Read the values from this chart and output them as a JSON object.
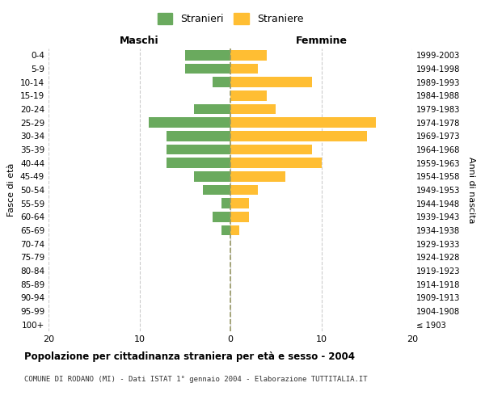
{
  "age_groups": [
    "100+",
    "95-99",
    "90-94",
    "85-89",
    "80-84",
    "75-79",
    "70-74",
    "65-69",
    "60-64",
    "55-59",
    "50-54",
    "45-49",
    "40-44",
    "35-39",
    "30-34",
    "25-29",
    "20-24",
    "15-19",
    "10-14",
    "5-9",
    "0-4"
  ],
  "birth_years": [
    "≤ 1903",
    "1904-1908",
    "1909-1913",
    "1914-1918",
    "1919-1923",
    "1924-1928",
    "1929-1933",
    "1934-1938",
    "1939-1943",
    "1944-1948",
    "1949-1953",
    "1954-1958",
    "1959-1963",
    "1964-1968",
    "1969-1973",
    "1974-1978",
    "1979-1983",
    "1984-1988",
    "1989-1993",
    "1994-1998",
    "1999-2003"
  ],
  "males": [
    0,
    0,
    0,
    0,
    0,
    0,
    0,
    1,
    2,
    1,
    3,
    4,
    7,
    7,
    7,
    9,
    4,
    0,
    2,
    5,
    5
  ],
  "females": [
    0,
    0,
    0,
    0,
    0,
    0,
    0,
    1,
    2,
    2,
    3,
    6,
    10,
    9,
    15,
    16,
    5,
    4,
    9,
    3,
    4
  ],
  "male_color": "#6aaa5e",
  "female_color": "#ffbe33",
  "grid_color": "#cccccc",
  "title": "Popolazione per cittadinanza straniera per età e sesso - 2004",
  "subtitle": "COMUNE DI RODANO (MI) - Dati ISTAT 1° gennaio 2004 - Elaborazione TUTTITALIA.IT",
  "xlabel_left": "Maschi",
  "xlabel_right": "Femmine",
  "ylabel_left": "Fasce di età",
  "ylabel_right": "Anni di nascita",
  "legend_male": "Stranieri",
  "legend_female": "Straniere",
  "xlim": 20,
  "background_color": "#ffffff",
  "center_line_color": "#999966"
}
